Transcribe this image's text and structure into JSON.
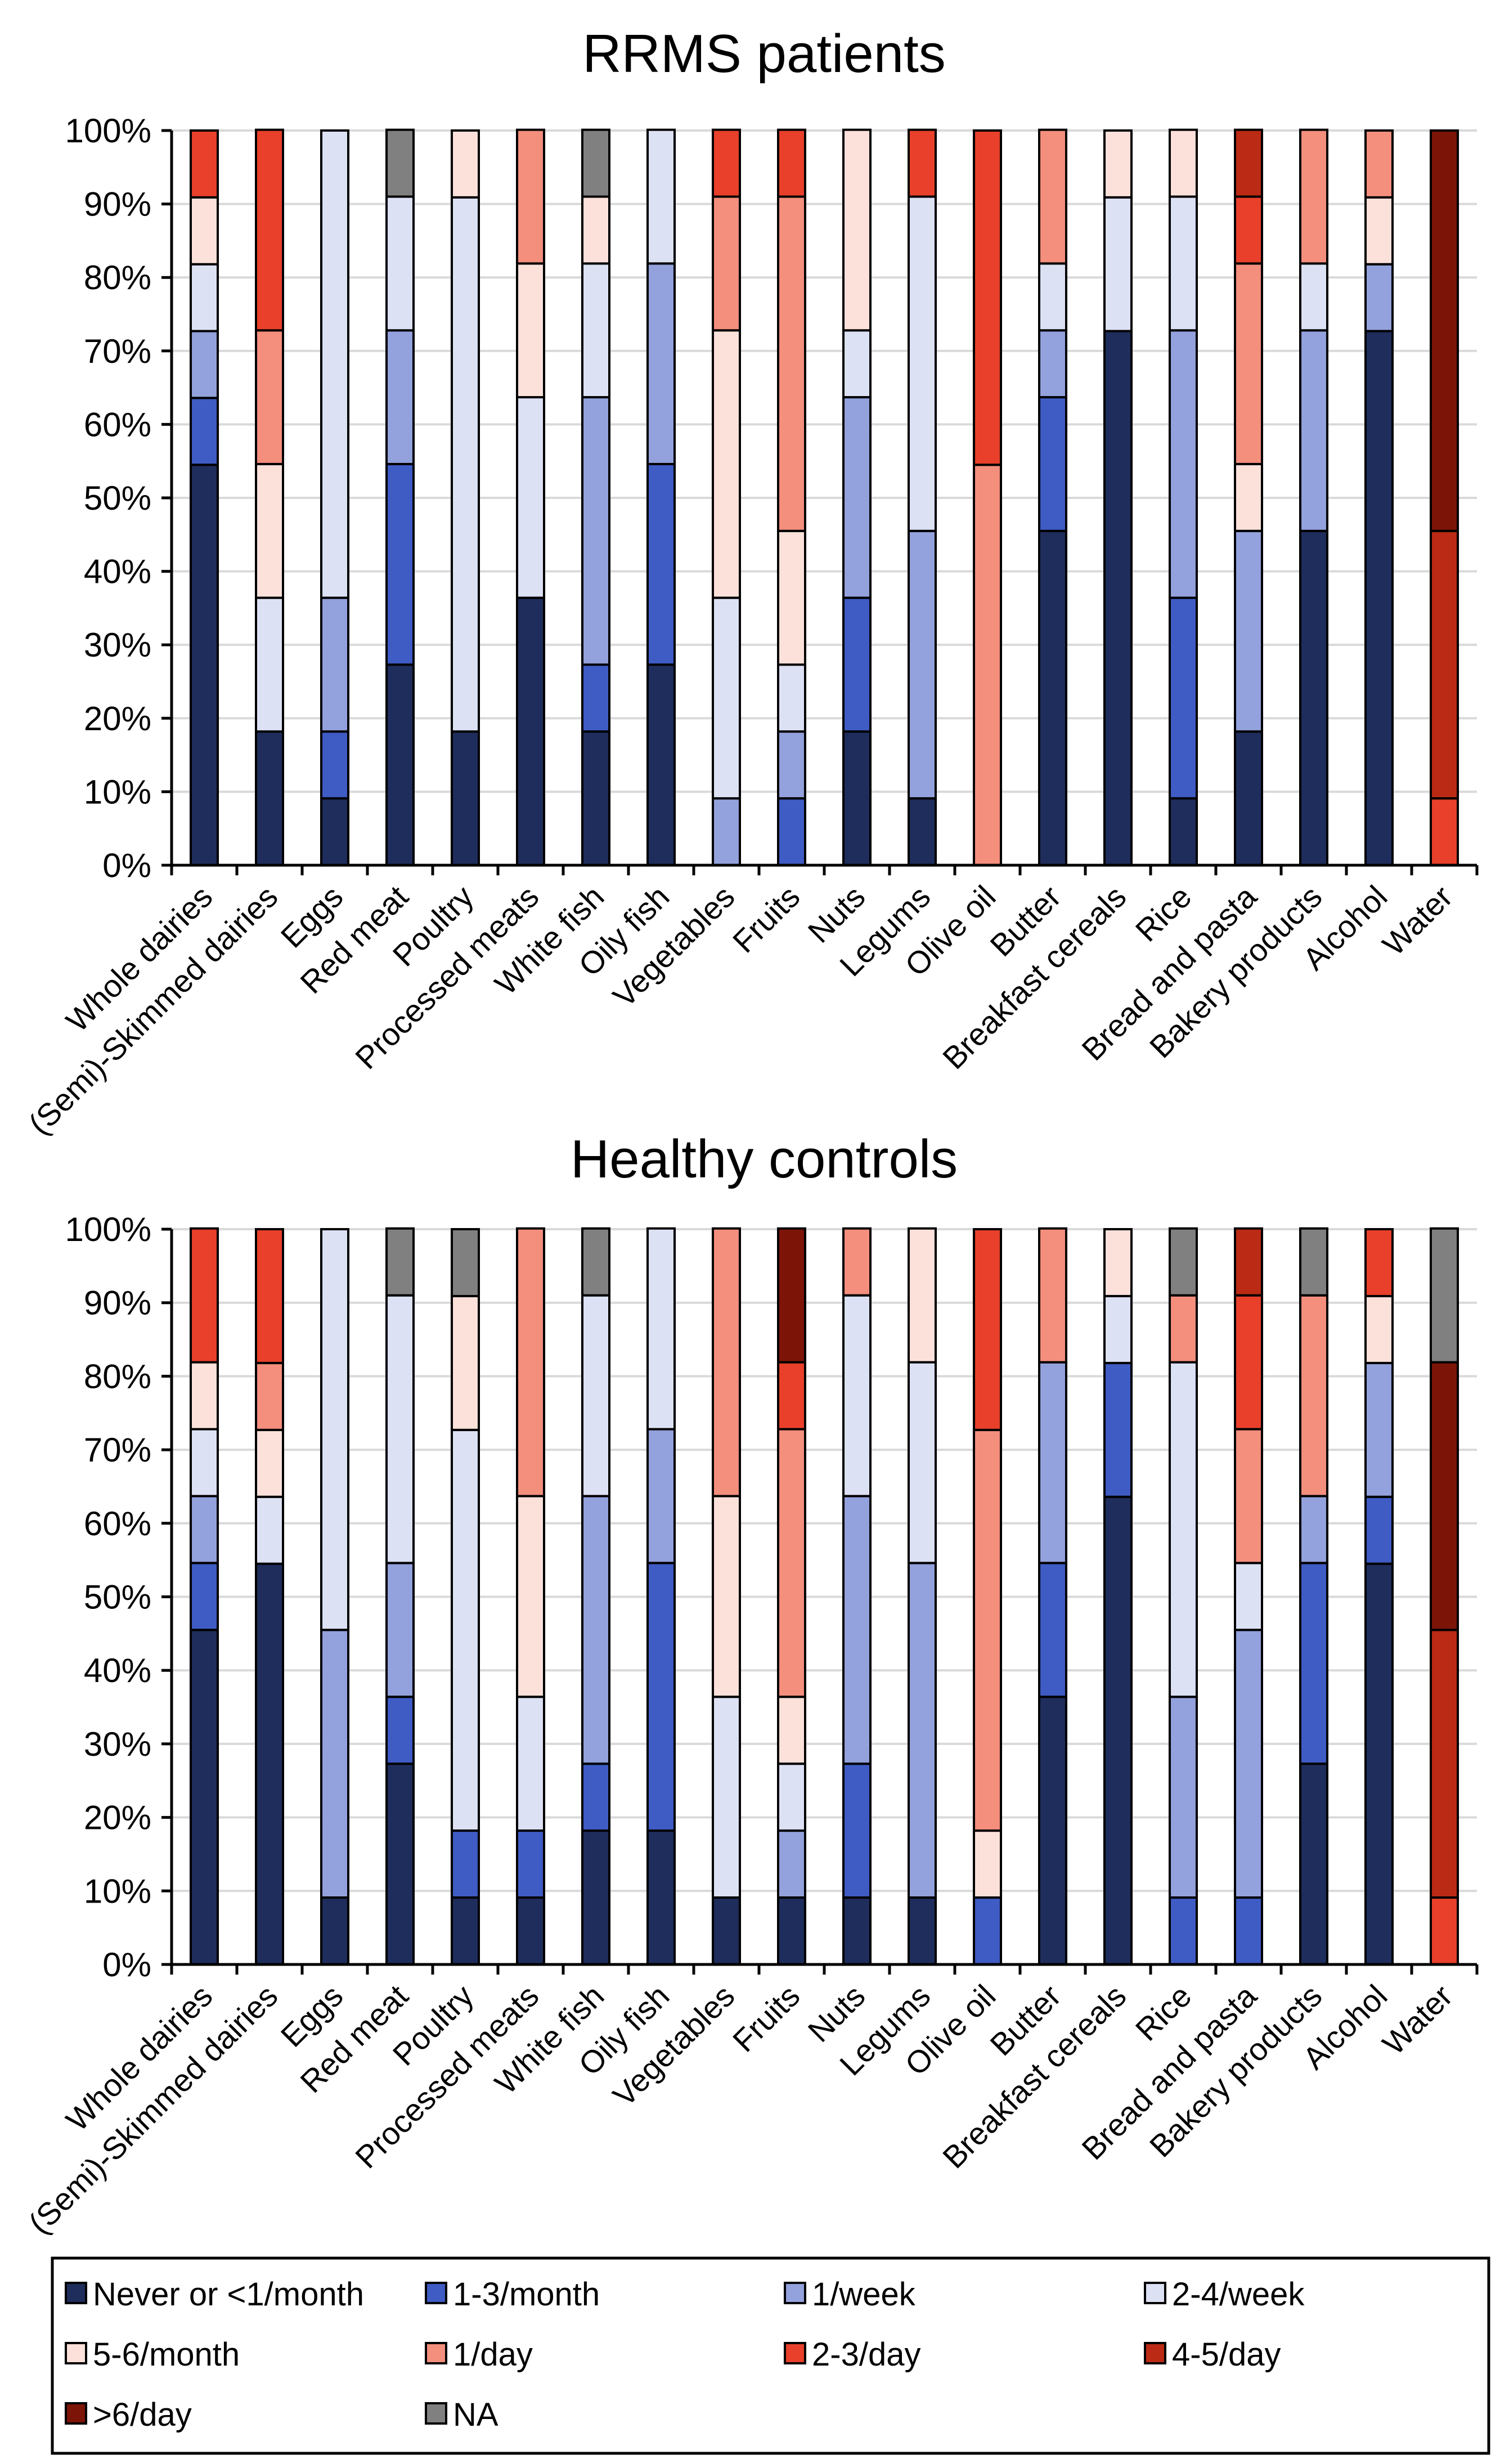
{
  "chart_data": [
    {
      "type": "bar",
      "stacked": true,
      "title": "RRMS patients",
      "ylim": [
        0,
        100
      ],
      "yticks": [
        "0%",
        "10%",
        "20%",
        "30%",
        "40%",
        "50%",
        "60%",
        "70%",
        "80%",
        "90%",
        "100%"
      ],
      "categories": [
        "Whole dairies",
        "(Semi)-Skimmed dairies",
        "Eggs",
        "Red meat",
        "Poultry",
        "Processed meats",
        "White fish",
        "Oily fish",
        "Vegetables",
        "Fruits",
        "Nuts",
        "Legums",
        "Olive oil",
        "Butter",
        "Breakfast cereals",
        "Rice",
        "Bread and pasta",
        "Bakery products",
        "Alcohol",
        "Water"
      ],
      "series": [
        {
          "name": "Never or <1/month",
          "values": [
            54.5,
            18.2,
            9.1,
            27.3,
            18.2,
            36.4,
            18.2,
            27.3,
            0,
            0,
            18.2,
            9.1,
            0,
            45.5,
            72.7,
            9.1,
            18.2,
            45.5,
            72.7,
            0
          ]
        },
        {
          "name": "1-3/month",
          "values": [
            9.1,
            0,
            9.1,
            27.3,
            0,
            0,
            9.1,
            27.3,
            0,
            9.1,
            18.2,
            0,
            0,
            18.2,
            0,
            27.3,
            0,
            0,
            0,
            0
          ]
        },
        {
          "name": "1/week",
          "values": [
            9.1,
            0,
            18.2,
            18.2,
            0,
            0,
            36.4,
            27.3,
            9.1,
            9.1,
            27.3,
            36.4,
            0,
            9.1,
            0,
            36.4,
            27.3,
            27.3,
            9.1,
            0
          ]
        },
        {
          "name": "2-4/week",
          "values": [
            9.1,
            18.2,
            63.6,
            18.2,
            72.7,
            27.3,
            18.2,
            18.2,
            27.3,
            9.1,
            9.1,
            45.5,
            0,
            9.1,
            18.2,
            18.2,
            0,
            9.1,
            0,
            0
          ]
        },
        {
          "name": "5-6/month",
          "values": [
            9.1,
            18.2,
            0,
            0,
            9.1,
            18.2,
            9.1,
            0,
            36.4,
            18.2,
            27.3,
            0,
            0,
            0,
            9.1,
            9.1,
            9.1,
            0,
            9.1,
            0
          ]
        },
        {
          "name": "1/day",
          "values": [
            0,
            18.2,
            0,
            0,
            0,
            18.2,
            0,
            0,
            18.2,
            45.5,
            0,
            0,
            54.5,
            18.2,
            0,
            0,
            27.3,
            18.2,
            9.1,
            0
          ]
        },
        {
          "name": "2-3/day",
          "values": [
            9.1,
            27.3,
            0,
            0,
            0,
            0,
            0,
            0,
            9.1,
            9.1,
            0,
            9.1,
            45.5,
            0,
            0,
            0,
            9.1,
            0,
            0,
            9.1
          ]
        },
        {
          "name": "4-5/day",
          "values": [
            0,
            0,
            0,
            0,
            0,
            0,
            0,
            0,
            0,
            0,
            0,
            0,
            0,
            0,
            0,
            0,
            9.1,
            0,
            0,
            36.4
          ]
        },
        {
          "name": ">6/day",
          "values": [
            0,
            0,
            0,
            0,
            0,
            0,
            0,
            0,
            0,
            0,
            0,
            0,
            0,
            0,
            0,
            0,
            0,
            0,
            0,
            54.5
          ]
        },
        {
          "name": "NA",
          "values": [
            0,
            0,
            0,
            9.1,
            0,
            0,
            9.1,
            0,
            0,
            0,
            0,
            0,
            0,
            0,
            0,
            0,
            0,
            0,
            0,
            0
          ]
        }
      ]
    },
    {
      "type": "bar",
      "stacked": true,
      "title": "Healthy controls",
      "ylim": [
        0,
        100
      ],
      "yticks": [
        "0%",
        "10%",
        "20%",
        "30%",
        "40%",
        "50%",
        "60%",
        "70%",
        "80%",
        "90%",
        "100%"
      ],
      "categories": [
        "Whole dairies",
        "(Semi)-Skimmed dairies",
        "Eggs",
        "Red meat",
        "Poultry",
        "Processed meats",
        "White fish",
        "Oily fish",
        "Vegetables",
        "Fruits",
        "Nuts",
        "Legums",
        "Olive oil",
        "Butter",
        "Breakfast cereals",
        "Rice",
        "Bread and pasta",
        "Bakery products",
        "Alcohol",
        "Water"
      ],
      "series": [
        {
          "name": "Never or <1/month",
          "values": [
            45.5,
            54.5,
            9.1,
            27.3,
            9.1,
            9.1,
            18.2,
            18.2,
            9.1,
            9.1,
            9.1,
            9.1,
            0,
            36.4,
            63.6,
            0,
            0,
            27.3,
            54.5,
            0
          ]
        },
        {
          "name": "1-3/month",
          "values": [
            9.1,
            0,
            0,
            9.1,
            9.1,
            9.1,
            9.1,
            36.4,
            0,
            0,
            18.2,
            0,
            9.1,
            18.2,
            18.2,
            9.1,
            9.1,
            27.3,
            9.1,
            0
          ]
        },
        {
          "name": "1/week",
          "values": [
            9.1,
            0,
            36.4,
            18.2,
            0,
            0,
            36.4,
            18.2,
            0,
            9.1,
            36.4,
            45.5,
            0,
            27.3,
            0,
            27.3,
            36.4,
            9.1,
            18.2,
            0
          ]
        },
        {
          "name": "2-4/week",
          "values": [
            9.1,
            9.1,
            54.5,
            36.4,
            54.5,
            18.2,
            27.3,
            27.3,
            27.3,
            9.1,
            27.3,
            27.3,
            0,
            0,
            9.1,
            45.5,
            9.1,
            0,
            0,
            0
          ]
        },
        {
          "name": "5-6/month",
          "values": [
            9.1,
            9.1,
            0,
            0,
            18.2,
            27.3,
            0,
            0,
            27.3,
            9.1,
            0,
            18.2,
            9.1,
            0,
            9.1,
            0,
            0,
            0,
            9.1,
            0
          ]
        },
        {
          "name": "1/day",
          "values": [
            0,
            9.1,
            0,
            0,
            0,
            36.4,
            0,
            0,
            36.4,
            36.4,
            9.1,
            0,
            54.5,
            18.2,
            0,
            9.1,
            18.2,
            27.3,
            0,
            0
          ]
        },
        {
          "name": "2-3/day",
          "values": [
            18.2,
            18.2,
            0,
            0,
            0,
            0,
            0,
            0,
            0,
            9.1,
            0,
            0,
            27.3,
            0,
            0,
            0,
            18.2,
            0,
            9.1,
            9.1
          ]
        },
        {
          "name": "4-5/day",
          "values": [
            0,
            0,
            0,
            0,
            0,
            0,
            0,
            0,
            0,
            0,
            0,
            0,
            0,
            0,
            0,
            0,
            9.1,
            0,
            0,
            36.4
          ]
        },
        {
          "name": ">6/day",
          "values": [
            0,
            0,
            0,
            0,
            0,
            0,
            0,
            0,
            0,
            18.2,
            0,
            0,
            0,
            0,
            0,
            0,
            0,
            0,
            0,
            36.4
          ]
        },
        {
          "name": "NA",
          "values": [
            0,
            0,
            0,
            9.1,
            9.1,
            0,
            9.1,
            0,
            0,
            0,
            0,
            0,
            0,
            0,
            0,
            9.1,
            0,
            9.1,
            0,
            18.2
          ]
        }
      ]
    }
  ],
  "legend": {
    "items": [
      {
        "label": "Never or <1/month",
        "color": "#1f2d5c"
      },
      {
        "label": "1-3/month",
        "color": "#3f5bc4"
      },
      {
        "label": "1/week",
        "color": "#93a1dc"
      },
      {
        "label": "2-4/week",
        "color": "#dde1f4"
      },
      {
        "label": "5-6/month",
        "color": "#fbe1da"
      },
      {
        "label": "1/day",
        "color": "#f48e7d"
      },
      {
        "label": "2-3/day",
        "color": "#e8402a"
      },
      {
        "label": "4-5/day",
        "color": "#bb2a14"
      },
      {
        "label": ">6/day",
        "color": "#7c1408"
      },
      {
        "label": "NA",
        "color": "#808080"
      }
    ]
  }
}
